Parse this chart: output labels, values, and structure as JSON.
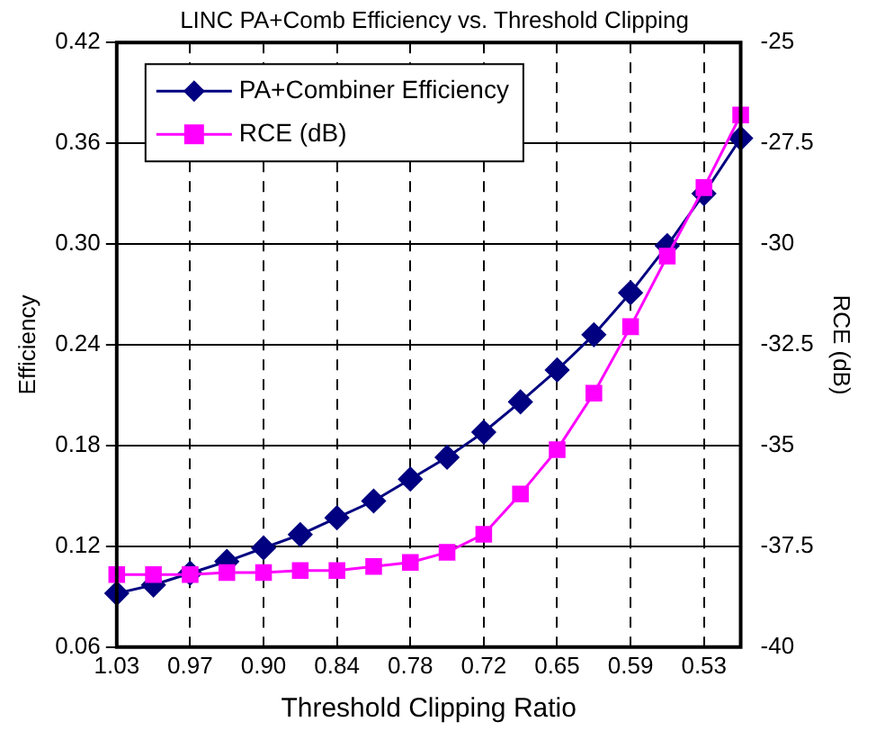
{
  "chart_data": {
    "type": "line",
    "title": "LINC PA+Comb Efficiency vs. Threshold Clipping",
    "xlabel": "Threshold Clipping Ratio",
    "ylabel": "Efficiency",
    "y2label": "RCE (dB)",
    "categories": [
      "1.03",
      null,
      "0.97",
      null,
      "0.90",
      null,
      "0.84",
      null,
      "0.78",
      null,
      "0.72",
      null,
      "0.65",
      null,
      "0.59",
      null,
      "0.53",
      null
    ],
    "series": [
      {
        "name": "PA+Combiner Efficiency",
        "color": "#000080",
        "marker": "diamond",
        "values": [
          0.092,
          0.097,
          0.104,
          0.111,
          0.119,
          0.127,
          0.137,
          0.147,
          0.16,
          0.173,
          0.188,
          0.206,
          0.225,
          0.246,
          0.271,
          0.299,
          0.33,
          0.363
        ]
      },
      {
        "name": "RCE (dB)",
        "color": "#ff00ff",
        "marker": "square",
        "axis": "y2",
        "values": [
          -38.2,
          -38.2,
          -38.2,
          -38.15,
          -38.15,
          -38.1,
          -38.1,
          -38.0,
          -37.9,
          -37.65,
          -37.2,
          -36.2,
          -35.1,
          -33.7,
          -32.05,
          -30.3,
          -28.6,
          -26.8
        ]
      }
    ],
    "ylim": [
      0.06,
      0.42
    ],
    "yticks": [
      0.06,
      0.12,
      0.18,
      0.24,
      {
        "value": 0.3,
        "label": "0.30"
      },
      0.36,
      0.42
    ],
    "y2lim": [
      -40,
      -25
    ],
    "y2ticks": [
      -40,
      -37.5,
      -35,
      -32.5,
      -30,
      -27.5,
      -25
    ],
    "grid": true,
    "legend": "top left"
  }
}
